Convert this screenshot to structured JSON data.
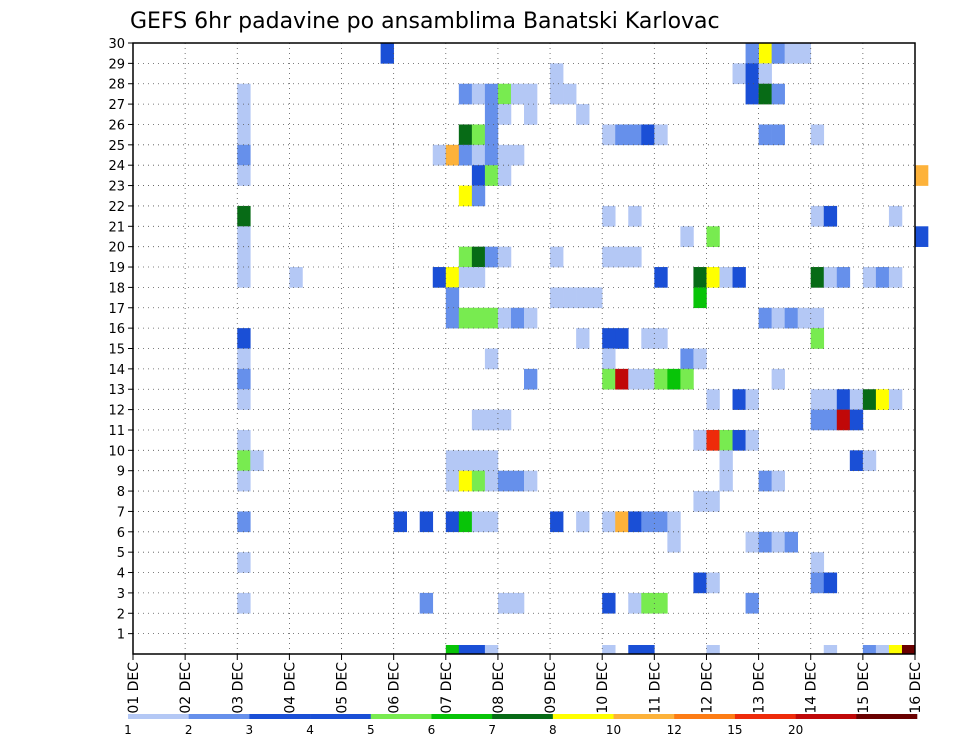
{
  "chart_data": {
    "type": "heatmap",
    "title": "GEFS 6hr padavine po ansamblima Banatski Karlovac",
    "xlabel": "",
    "ylabel": "",
    "x_tick_labels": [
      "01 DEC",
      "02 DEC",
      "03 DEC",
      "04 DEC",
      "05 DEC",
      "06 DEC",
      "07 DEC",
      "08 DEC",
      "09 DEC",
      "10 DEC",
      "11 DEC",
      "12 DEC",
      "13 DEC",
      "14 DEC",
      "15 DEC",
      "16 DEC"
    ],
    "xlim_days": [
      1,
      16
    ],
    "y_tick_labels": [
      "1",
      "2",
      "3",
      "4",
      "5",
      "6",
      "7",
      "8",
      "9",
      "10",
      "11",
      "12",
      "13",
      "14",
      "15",
      "16",
      "17",
      "18",
      "19",
      "20",
      "21",
      "22",
      "23",
      "24",
      "25",
      "26",
      "27",
      "28",
      "29",
      "30"
    ],
    "ylim": [
      0,
      30
    ],
    "time_step_hours": 6,
    "grid": true,
    "colorbar": {
      "position": "bottom",
      "labels": [
        "1",
        "2",
        "3",
        "4",
        "5",
        "6",
        "7",
        "8",
        "10",
        "12",
        "15",
        "20"
      ],
      "colors": [
        "#b4c8f5",
        "#6690eb",
        "#1a4fd6",
        "#1a4fd6",
        "#78eb50",
        "#08c408",
        "#076b16",
        "#ffff00",
        "#fdb23a",
        "#fd7c14",
        "#ee2b0a",
        "#c00808",
        "#6a0000"
      ]
    },
    "cells_legend": "each cell = [member, day, 6h-step index 0-3, color class 1-13]",
    "cells": [
      [
        30,
        5,
        3,
        3
      ],
      [
        30,
        13,
        0,
        8
      ],
      [
        30,
        12,
        3,
        2
      ],
      [
        30,
        13,
        1,
        2
      ],
      [
        30,
        13,
        2,
        1
      ],
      [
        30,
        13,
        3,
        1
      ],
      [
        29,
        9,
        0,
        1
      ],
      [
        29,
        12,
        2,
        1
      ],
      [
        29,
        12,
        3,
        3
      ],
      [
        29,
        13,
        0,
        1
      ],
      [
        28,
        3,
        0,
        1
      ],
      [
        28,
        7,
        1,
        2
      ],
      [
        28,
        7,
        2,
        1
      ],
      [
        28,
        7,
        3,
        2
      ],
      [
        28,
        8,
        0,
        5
      ],
      [
        28,
        8,
        1,
        1
      ],
      [
        28,
        8,
        2,
        1
      ],
      [
        28,
        9,
        0,
        1
      ],
      [
        28,
        9,
        1,
        1
      ],
      [
        28,
        12,
        3,
        3
      ],
      [
        28,
        13,
        0,
        7
      ],
      [
        28,
        13,
        1,
        2
      ],
      [
        27,
        3,
        0,
        1
      ],
      [
        27,
        7,
        3,
        2
      ],
      [
        27,
        8,
        0,
        1
      ],
      [
        27,
        8,
        2,
        1
      ],
      [
        27,
        9,
        2,
        1
      ],
      [
        26,
        3,
        0,
        1
      ],
      [
        26,
        7,
        1,
        7
      ],
      [
        26,
        7,
        2,
        5
      ],
      [
        26,
        7,
        3,
        2
      ],
      [
        26,
        10,
        0,
        1
      ],
      [
        26,
        10,
        1,
        2
      ],
      [
        26,
        10,
        2,
        2
      ],
      [
        26,
        10,
        3,
        3
      ],
      [
        26,
        11,
        0,
        1
      ],
      [
        26,
        13,
        0,
        2
      ],
      [
        26,
        13,
        1,
        2
      ],
      [
        26,
        14,
        0,
        1
      ],
      [
        25,
        3,
        0,
        2
      ],
      [
        25,
        6,
        3,
        1
      ],
      [
        25,
        7,
        0,
        9
      ],
      [
        25,
        7,
        1,
        2
      ],
      [
        25,
        7,
        2,
        1
      ],
      [
        25,
        7,
        3,
        2
      ],
      [
        25,
        8,
        0,
        1
      ],
      [
        25,
        8,
        1,
        1
      ],
      [
        24,
        3,
        0,
        1
      ],
      [
        24,
        7,
        2,
        3
      ],
      [
        24,
        7,
        3,
        5
      ],
      [
        24,
        8,
        0,
        1
      ],
      [
        24,
        16,
        0,
        9
      ],
      [
        23,
        7,
        1,
        8
      ],
      [
        23,
        7,
        2,
        2
      ],
      [
        22,
        3,
        0,
        7
      ],
      [
        22,
        10,
        0,
        1
      ],
      [
        22,
        10,
        2,
        1
      ],
      [
        22,
        14,
        0,
        1
      ],
      [
        22,
        14,
        1,
        3
      ],
      [
        22,
        15,
        2,
        1
      ],
      [
        21,
        3,
        0,
        1
      ],
      [
        21,
        11,
        2,
        1
      ],
      [
        21,
        12,
        0,
        5
      ],
      [
        21,
        16,
        0,
        3
      ],
      [
        20,
        3,
        0,
        1
      ],
      [
        20,
        7,
        1,
        5
      ],
      [
        20,
        7,
        2,
        7
      ],
      [
        20,
        7,
        3,
        2
      ],
      [
        20,
        8,
        0,
        1
      ],
      [
        20,
        9,
        0,
        1
      ],
      [
        20,
        10,
        0,
        1
      ],
      [
        20,
        10,
        1,
        1
      ],
      [
        20,
        10,
        2,
        1
      ],
      [
        19,
        3,
        0,
        1
      ],
      [
        19,
        4,
        0,
        1
      ],
      [
        19,
        6,
        3,
        3
      ],
      [
        19,
        7,
        0,
        8
      ],
      [
        19,
        7,
        1,
        1
      ],
      [
        19,
        7,
        2,
        1
      ],
      [
        19,
        11,
        0,
        3
      ],
      [
        19,
        11,
        3,
        7
      ],
      [
        19,
        12,
        0,
        8
      ],
      [
        19,
        12,
        1,
        1
      ],
      [
        19,
        12,
        2,
        3
      ],
      [
        19,
        14,
        0,
        7
      ],
      [
        19,
        14,
        1,
        1
      ],
      [
        19,
        14,
        2,
        2
      ],
      [
        19,
        15,
        0,
        1
      ],
      [
        19,
        15,
        1,
        2
      ],
      [
        19,
        15,
        2,
        1
      ],
      [
        18,
        7,
        0,
        2
      ],
      [
        18,
        9,
        0,
        1
      ],
      [
        18,
        9,
        1,
        1
      ],
      [
        18,
        9,
        2,
        1
      ],
      [
        18,
        9,
        3,
        1
      ],
      [
        18,
        11,
        3,
        6
      ],
      [
        17,
        7,
        0,
        2
      ],
      [
        17,
        7,
        1,
        5
      ],
      [
        17,
        7,
        2,
        5
      ],
      [
        17,
        7,
        3,
        5
      ],
      [
        17,
        8,
        0,
        1
      ],
      [
        17,
        8,
        1,
        2
      ],
      [
        17,
        8,
        2,
        1
      ],
      [
        17,
        13,
        0,
        2
      ],
      [
        17,
        13,
        1,
        1
      ],
      [
        17,
        13,
        2,
        2
      ],
      [
        17,
        13,
        3,
        1
      ],
      [
        17,
        14,
        0,
        1
      ],
      [
        16,
        3,
        0,
        3
      ],
      [
        16,
        9,
        2,
        1
      ],
      [
        16,
        10,
        0,
        3
      ],
      [
        16,
        10,
        1,
        3
      ],
      [
        16,
        10,
        3,
        1
      ],
      [
        16,
        11,
        0,
        1
      ],
      [
        16,
        14,
        0,
        5
      ],
      [
        15,
        3,
        0,
        1
      ],
      [
        15,
        7,
        3,
        1
      ],
      [
        15,
        10,
        0,
        1
      ],
      [
        15,
        11,
        2,
        2
      ],
      [
        15,
        11,
        3,
        1
      ],
      [
        14,
        3,
        0,
        2
      ],
      [
        14,
        8,
        2,
        2
      ],
      [
        14,
        10,
        0,
        5
      ],
      [
        14,
        10,
        1,
        12
      ],
      [
        14,
        10,
        2,
        1
      ],
      [
        14,
        10,
        3,
        1
      ],
      [
        14,
        11,
        0,
        5
      ],
      [
        14,
        11,
        1,
        6
      ],
      [
        14,
        11,
        2,
        5
      ],
      [
        14,
        13,
        1,
        1
      ],
      [
        13,
        3,
        0,
        1
      ],
      [
        13,
        12,
        0,
        1
      ],
      [
        13,
        12,
        2,
        3
      ],
      [
        13,
        12,
        3,
        1
      ],
      [
        13,
        14,
        0,
        1
      ],
      [
        13,
        14,
        1,
        1
      ],
      [
        13,
        14,
        2,
        3
      ],
      [
        13,
        14,
        3,
        1
      ],
      [
        13,
        15,
        0,
        7
      ],
      [
        13,
        15,
        1,
        8
      ],
      [
        13,
        15,
        2,
        1
      ],
      [
        12,
        7,
        2,
        1
      ],
      [
        12,
        7,
        3,
        1
      ],
      [
        12,
        8,
        0,
        1
      ],
      [
        12,
        14,
        0,
        2
      ],
      [
        12,
        14,
        1,
        2
      ],
      [
        12,
        14,
        2,
        12
      ],
      [
        12,
        14,
        3,
        3
      ],
      [
        11,
        3,
        0,
        1
      ],
      [
        11,
        11,
        3,
        1
      ],
      [
        11,
        12,
        0,
        11
      ],
      [
        11,
        12,
        1,
        5
      ],
      [
        11,
        12,
        2,
        3
      ],
      [
        11,
        12,
        3,
        1
      ],
      [
        10,
        3,
        0,
        5
      ],
      [
        10,
        3,
        1,
        1
      ],
      [
        10,
        7,
        0,
        1
      ],
      [
        10,
        7,
        1,
        1
      ],
      [
        10,
        7,
        2,
        1
      ],
      [
        10,
        7,
        3,
        1
      ],
      [
        10,
        12,
        1,
        1
      ],
      [
        10,
        14,
        3,
        3
      ],
      [
        10,
        15,
        0,
        1
      ],
      [
        9,
        3,
        0,
        1
      ],
      [
        9,
        7,
        0,
        1
      ],
      [
        9,
        7,
        1,
        8
      ],
      [
        9,
        7,
        2,
        5
      ],
      [
        9,
        7,
        3,
        1
      ],
      [
        9,
        8,
        0,
        2
      ],
      [
        9,
        8,
        1,
        2
      ],
      [
        9,
        8,
        2,
        1
      ],
      [
        9,
        12,
        1,
        1
      ],
      [
        9,
        13,
        0,
        2
      ],
      [
        9,
        13,
        1,
        1
      ],
      [
        8,
        11,
        3,
        1
      ],
      [
        8,
        12,
        0,
        1
      ],
      [
        7,
        3,
        0,
        2
      ],
      [
        7,
        6,
        0,
        3
      ],
      [
        7,
        6,
        2,
        3
      ],
      [
        7,
        7,
        0,
        3
      ],
      [
        7,
        7,
        1,
        6
      ],
      [
        7,
        7,
        2,
        1
      ],
      [
        7,
        7,
        3,
        1
      ],
      [
        7,
        9,
        0,
        3
      ],
      [
        7,
        9,
        2,
        1
      ],
      [
        7,
        10,
        0,
        1
      ],
      [
        7,
        10,
        1,
        9
      ],
      [
        7,
        10,
        2,
        3
      ],
      [
        7,
        10,
        3,
        2
      ],
      [
        7,
        11,
        0,
        2
      ],
      [
        7,
        11,
        1,
        1
      ],
      [
        6,
        11,
        1,
        1
      ],
      [
        6,
        12,
        3,
        1
      ],
      [
        6,
        13,
        0,
        2
      ],
      [
        6,
        13,
        1,
        1
      ],
      [
        6,
        13,
        2,
        2
      ],
      [
        5,
        3,
        0,
        1
      ],
      [
        5,
        14,
        0,
        1
      ],
      [
        4,
        11,
        3,
        3
      ],
      [
        4,
        12,
        0,
        1
      ],
      [
        4,
        14,
        0,
        2
      ],
      [
        4,
        14,
        1,
        3
      ],
      [
        3,
        3,
        0,
        1
      ],
      [
        3,
        6,
        2,
        2
      ],
      [
        3,
        8,
        0,
        1
      ],
      [
        3,
        8,
        1,
        1
      ],
      [
        3,
        10,
        0,
        3
      ],
      [
        3,
        10,
        2,
        1
      ],
      [
        3,
        10,
        3,
        5
      ],
      [
        3,
        11,
        0,
        5
      ],
      [
        3,
        12,
        3,
        2
      ]
    ],
    "bottom_strip": [
      [
        7,
        0,
        6
      ],
      [
        7,
        1,
        3
      ],
      [
        7,
        2,
        3
      ],
      [
        7,
        3,
        1
      ],
      [
        10,
        0,
        1
      ],
      [
        10,
        2,
        3
      ],
      [
        10,
        3,
        3
      ],
      [
        12,
        0,
        1
      ],
      [
        14,
        1,
        1
      ],
      [
        15,
        0,
        2
      ],
      [
        15,
        1,
        1
      ],
      [
        15,
        2,
        8
      ],
      [
        15,
        3,
        13
      ]
    ]
  }
}
